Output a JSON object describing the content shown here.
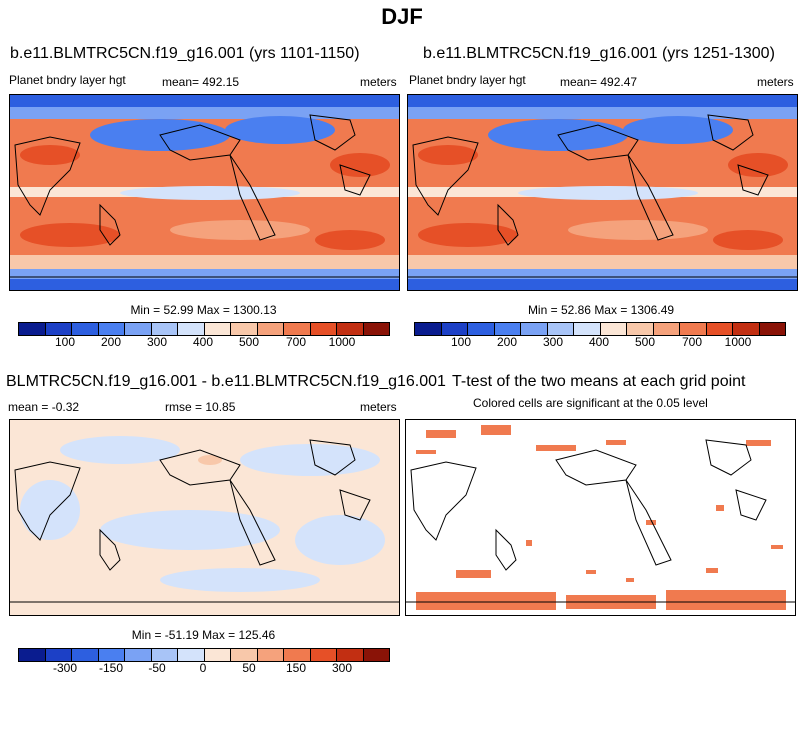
{
  "main_title": "DJF",
  "panels": {
    "top_left": {
      "title": "b.e11.BLMTRC5CN.f19_g16.001 (yrs 1101-1150)",
      "variable": "Planet bndry layer hgt",
      "mean": "mean= 492.15",
      "units": "meters",
      "minmax": "Min =  52.99 Max = 1300.13"
    },
    "top_right": {
      "title": "b.e11.BLMTRC5CN.f19_g16.001 (yrs 1251-1300)",
      "variable": "Planet bndry layer hgt",
      "mean": "mean= 492.47",
      "units": "meters",
      "minmax": "Min =  52.86 Max = 1306.49"
    },
    "bottom_left": {
      "title": "BLMTRC5CN.f19_g16.001 - b.e11.BLMTRC5CN.f19_g16.001",
      "mean": "mean =  -0.32",
      "rmse": "rmse =  10.85",
      "units": "meters",
      "minmax": "Min = -51.19 Max = 125.46"
    },
    "bottom_right": {
      "title": "T-test of the two means at each grid point",
      "subtitle": "Colored cells are significant at the 0.05 level"
    }
  },
  "colorbars": {
    "abs_colors": [
      "#0a1c8f",
      "#1c40c6",
      "#2d5fe0",
      "#4a7ff0",
      "#7aa2f4",
      "#a8c4f7",
      "#d4e3fb",
      "#fbe6d6",
      "#f8c8aa",
      "#f5a27c",
      "#f07a4f",
      "#e65027",
      "#c22f12",
      "#8a1307"
    ],
    "abs_ticks": [
      "100",
      "200",
      "300",
      "400",
      "500",
      "700",
      "1000"
    ],
    "diff_colors": [
      "#0a1c8f",
      "#1c40c6",
      "#2d5fe0",
      "#4a7ff0",
      "#7aa2f4",
      "#a8c4f7",
      "#d4e3fb",
      "#fbe6d6",
      "#f8c8aa",
      "#f5a27c",
      "#f07a4f",
      "#e65027",
      "#c22f12",
      "#8a1307"
    ],
    "diff_ticks": [
      "-300",
      "-150",
      "-50",
      "0",
      "50",
      "150",
      "300"
    ]
  }
}
